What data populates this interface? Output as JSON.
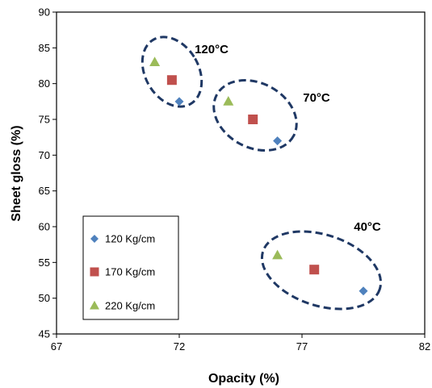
{
  "chart_data": {
    "type": "scatter",
    "xlabel": "Opacity (%)",
    "ylabel": "Sheet gloss (%)",
    "xlim": [
      67,
      82
    ],
    "ylim": [
      45,
      90
    ],
    "xticks": [
      67,
      72,
      77,
      82
    ],
    "yticks": [
      45,
      50,
      55,
      60,
      65,
      70,
      75,
      80,
      85,
      90
    ],
    "grid": false,
    "legend_position": "bottom-left",
    "series": [
      {
        "name": "120 Kg/cm",
        "marker": "diamond",
        "color": "#4F81BD",
        "points": [
          {
            "x": 72.0,
            "y": 77.5
          },
          {
            "x": 76.0,
            "y": 72.0
          },
          {
            "x": 79.5,
            "y": 51.0
          }
        ]
      },
      {
        "name": "170 Kg/cm",
        "marker": "square",
        "color": "#C0504D",
        "points": [
          {
            "x": 71.7,
            "y": 80.5
          },
          {
            "x": 75.0,
            "y": 75.0
          },
          {
            "x": 77.5,
            "y": 54.0
          }
        ]
      },
      {
        "name": "220 Kg/cm",
        "marker": "triangle",
        "color": "#9BBB59",
        "points": [
          {
            "x": 71.0,
            "y": 83.0
          },
          {
            "x": 74.0,
            "y": 77.5
          },
          {
            "x": 76.0,
            "y": 56.0
          }
        ]
      }
    ],
    "groups": [
      {
        "label": "120°C",
        "center": {
          "x": 71.5,
          "y": 80.3
        }
      },
      {
        "label": "70°C",
        "center": {
          "x": 75.0,
          "y": 75.0
        }
      },
      {
        "label": "40°C",
        "center": {
          "x": 77.7,
          "y": 54.2
        }
      }
    ],
    "group_outline_color": "#1F3864"
  }
}
